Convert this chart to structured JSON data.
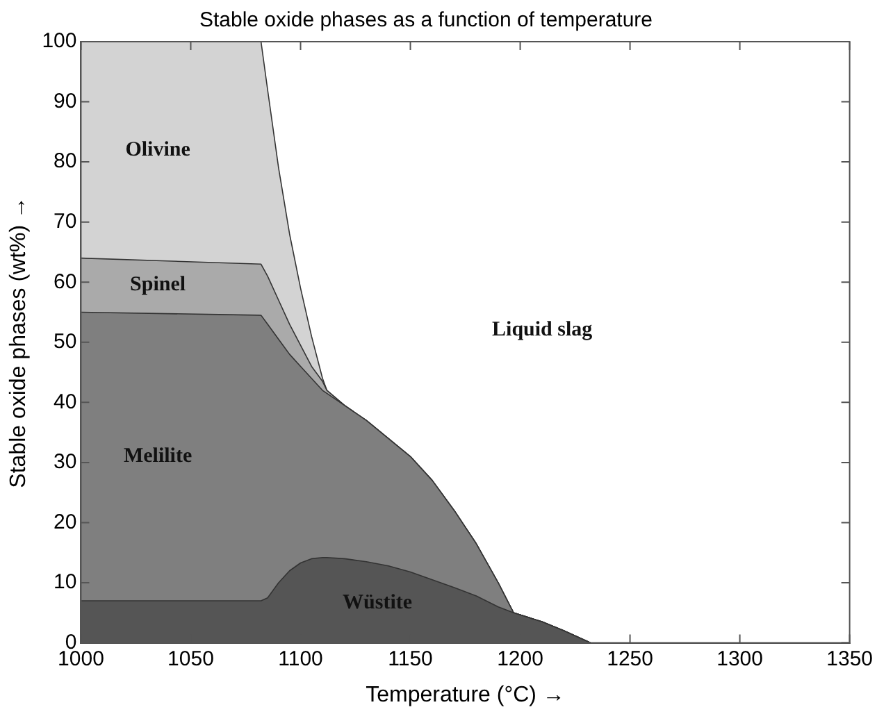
{
  "chart_data": {
    "type": "area",
    "stacked": true,
    "title": "Stable oxide phases as a function of temperature",
    "xlabel": "Temperature (°C) →",
    "ylabel": "Stable oxide phases (wt%) →",
    "x": [
      1000,
      1082,
      1085,
      1090,
      1095,
      1100,
      1105,
      1110,
      1112,
      1120,
      1130,
      1140,
      1150,
      1160,
      1170,
      1180,
      1190,
      1197,
      1210,
      1220,
      1232
    ],
    "series": [
      {
        "name": "Wüstite",
        "color": "#555555",
        "values": [
          7,
          7,
          7.5,
          10,
          12,
          13.3,
          14,
          14.2,
          14.2,
          14,
          13.5,
          12.8,
          11.8,
          10.5,
          9.2,
          7.8,
          6,
          5,
          3.5,
          2,
          0
        ]
      },
      {
        "name": "Melilite",
        "color": "#7f7f7f",
        "values": [
          48,
          47.5,
          45.5,
          40.5,
          36,
          32.7,
          30,
          27.8,
          27.3,
          25.5,
          23.5,
          21.2,
          19.2,
          16.5,
          12.8,
          8.7,
          4,
          0,
          0,
          0,
          0
        ]
      },
      {
        "name": "Spinel",
        "color": "#aaaaaa",
        "values": [
          9,
          8.5,
          8,
          6.5,
          5,
          3.5,
          2,
          1.5,
          0.5,
          0,
          0,
          0,
          0,
          0,
          0,
          0,
          0,
          0,
          0,
          0,
          0
        ]
      },
      {
        "name": "Olivine",
        "color": "#d3d3d3",
        "values": [
          36,
          37,
          31,
          22,
          15,
          9.5,
          5,
          0.5,
          0,
          0,
          0,
          0,
          0,
          0,
          0,
          0,
          0,
          0,
          0,
          0,
          0
        ]
      }
    ],
    "annotations": [
      "Liquid slag"
    ],
    "xlim": [
      1000,
      1350
    ],
    "xticks": [
      1000,
      1050,
      1100,
      1150,
      1200,
      1250,
      1300,
      1350
    ],
    "ylim": [
      0,
      100
    ],
    "yticks": [
      0,
      10,
      20,
      30,
      40,
      50,
      60,
      70,
      80,
      90,
      100
    ]
  }
}
